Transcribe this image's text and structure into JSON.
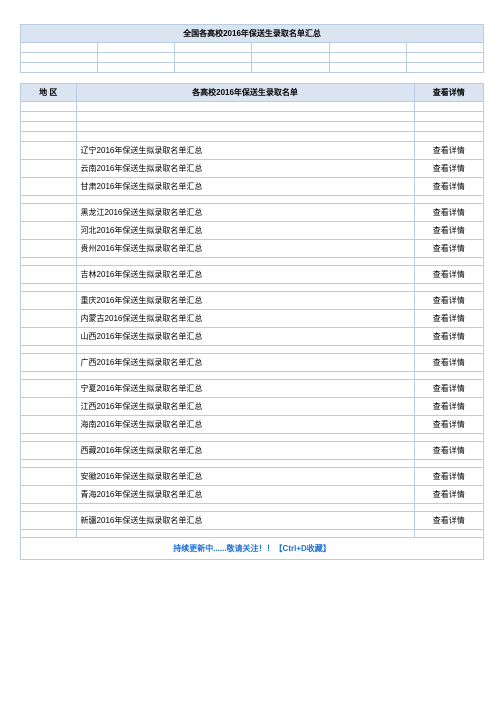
{
  "page_marker": "",
  "title": "全国各高校2016年保送生录取名单汇总",
  "columns": {
    "region": "地 区",
    "list": "各高校2016年保送生录取名单",
    "detail": "查看详情"
  },
  "detail_label": "查看详情",
  "groups": [
    [
      "辽宁2016年保送生拟录取名单汇总",
      "云南2016年保送生拟录取名单汇总",
      "甘肃2016年保送生拟录取名单汇总"
    ],
    [
      "黑龙江2016保送生拟录取名单汇总",
      "河北2016年保送生拟录取名单汇总",
      "贵州2016年保送生拟录取名单汇总"
    ],
    [
      "吉林2016年保送生拟录取名单汇总"
    ],
    [
      "重庆2016年保送生拟录取名单汇总",
      "内蒙古2016保送生拟录取名单汇总",
      "山西2016年保送生拟录取名单汇总"
    ],
    [
      "广西2016年保送生拟录取名单汇总"
    ],
    [
      "宁夏2016年保送生拟录取名单汇总",
      "江西2016年保送生拟录取名单汇总",
      "海南2016年保送生拟录取名单汇总"
    ],
    [
      "西藏2016年保送生拟录取名单汇总"
    ],
    [
      "安徽2016年保送生拟录取名单汇总",
      "青海2016年保送生拟录取名单汇总"
    ],
    [
      "新疆2016年保送生拟录取名单汇总"
    ]
  ],
  "footer": "持续更新中......敬请关注！！【Ctrl+D收藏】",
  "colors": {
    "header_bg": "#dbe5f1",
    "border": "#b8cce4",
    "footer_text": "#1f6fd4"
  }
}
